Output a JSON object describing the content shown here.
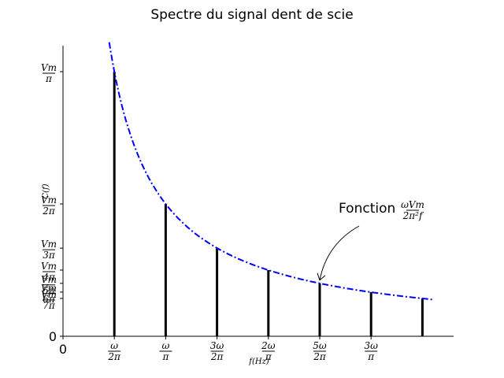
{
  "chart_data": {
    "type": "bar",
    "title": "Spectre du signal dent de scie",
    "xlabel": "f(Hz)",
    "ylabel": "C(f)",
    "x_unit": "ω/2π",
    "y_unit": "Vm/π",
    "xlim": [
      0,
      6.5
    ],
    "ylim": [
      0,
      1.1
    ],
    "bars": [
      {
        "x": 1,
        "value": 1.0
      },
      {
        "x": 2,
        "value": 0.5
      },
      {
        "x": 3,
        "value": 0.333
      },
      {
        "x": 4,
        "value": 0.25
      },
      {
        "x": 5,
        "value": 0.2
      },
      {
        "x": 6,
        "value": 0.167
      },
      {
        "x": 7,
        "value": 0.143
      }
    ],
    "curve": {
      "type": "dash-dot",
      "color": "#0000ff",
      "formula": "1/x",
      "x_range": [
        0.9,
        7.2
      ]
    },
    "x_ticks": [
      {
        "x": 0,
        "label": "0"
      },
      {
        "x": 1,
        "num": "ω",
        "den": "2π"
      },
      {
        "x": 2,
        "num": "ω",
        "den": "π"
      },
      {
        "x": 3,
        "num": "3ω",
        "den": "2π"
      },
      {
        "x": 4,
        "num": "2ω",
        "den": "π"
      },
      {
        "x": 5,
        "num": "5ω",
        "den": "2π"
      },
      {
        "x": 6,
        "num": "3ω",
        "den": "π"
      }
    ],
    "y_ticks": [
      {
        "y": 0,
        "label": "0"
      },
      {
        "y": 1.0,
        "num": "Vm",
        "den": "π"
      },
      {
        "y": 0.5,
        "num": "Vm",
        "den": "2π"
      },
      {
        "y": 0.333,
        "num": "Vm",
        "den": "3π"
      },
      {
        "y": 0.25,
        "num": "Vm",
        "den": "4π"
      },
      {
        "y": 0.2,
        "num": "Vm",
        "den": "5π"
      },
      {
        "y": 0.167,
        "num": "Vm",
        "den": "6π"
      },
      {
        "y": 0.143,
        "num": "Vm",
        "den": "7π"
      }
    ],
    "annotation": {
      "text": "Fonction",
      "formula_num": "ωVm",
      "formula_den": "2π²f",
      "target_x": 5,
      "target_y": 0.2
    },
    "grid": false,
    "colors": {
      "bars": "#000000",
      "curve": "#0000ff"
    }
  }
}
